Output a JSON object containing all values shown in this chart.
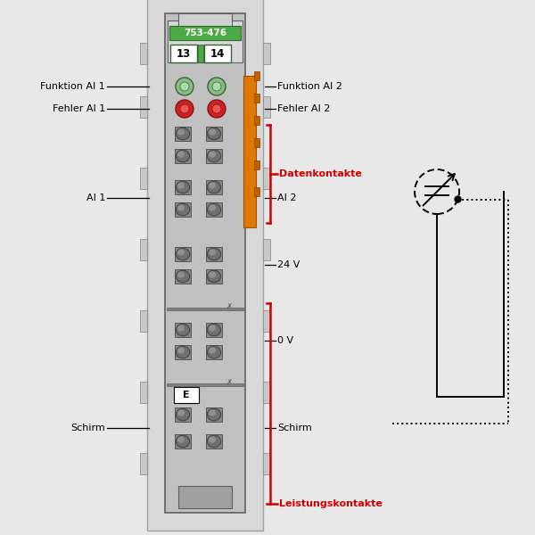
{
  "bg_color": "#e8e8e8",
  "outer_frame_color": "#d0d0d0",
  "module_body_color": "#c0c0c0",
  "module_inner_color": "#b8b8b8",
  "dark_gray": "#888888",
  "med_gray": "#a0a0a0",
  "connector_sq_color": "#909090",
  "connector_circ_color": "#707070",
  "orange_color": "#e07800",
  "green_header": "#4aaa44",
  "green_led_outer": "#88bb88",
  "green_led_inner": "#aaddaa",
  "red_led_outer": "#cc2222",
  "red_led_inner": "#ee5555",
  "white": "#ffffff",
  "black": "#000000",
  "red_line": "#cc0000",
  "title_text": "753-476",
  "pin_left": "13",
  "pin_right": "14",
  "fs_label": 8.0,
  "fs_title": 7.5,
  "fs_pin": 8.5
}
